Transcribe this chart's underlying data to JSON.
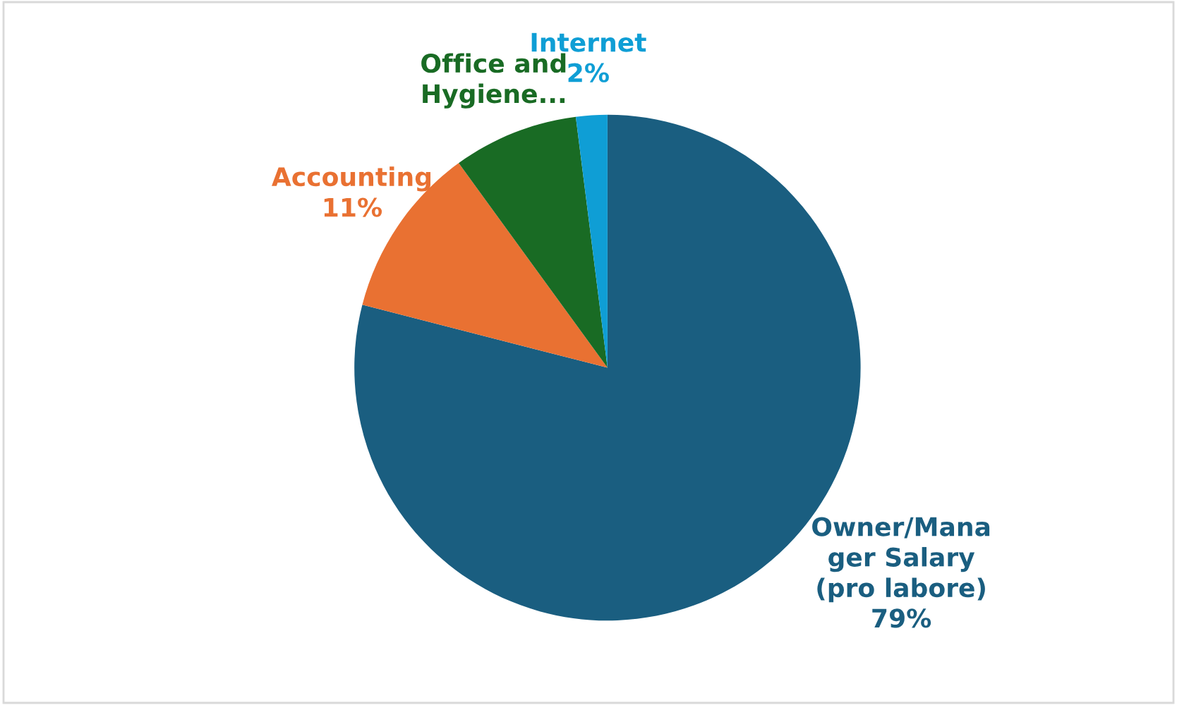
{
  "chart_data": {
    "type": "pie",
    "categories": [
      "Owner/Mana\nger Salary\n(pro labore)",
      "Accounting",
      "Office and\nHygiene...",
      "Internet"
    ],
    "values": [
      79,
      11,
      8,
      2
    ],
    "value_labels": [
      "79%",
      "11%",
      null,
      "2%"
    ],
    "colors": [
      "#1a5e80",
      "#e97132",
      "#196b24",
      "#0f9ed5"
    ]
  }
}
